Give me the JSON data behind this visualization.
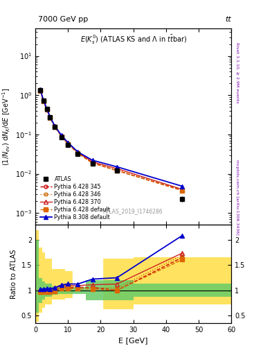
{
  "title_left": "7000 GeV pp",
  "title_right": "tt",
  "plot_title": "E(K$_s^0$) (ATLAS KS and \\Lambda in t\\={t}bar)",
  "watermark": "ATLAS_2019_I1746286",
  "right_label_top": "Rivet 3.1.10, ≥ 2.9M events",
  "right_label_bottom": "mcplots.cern.ch [arXiv:1306.3436]",
  "xlabel": "E [GeV]",
  "ylabel": "(1/N$_{ev}$) dN$_K$/dE [GeV$^{-1}$]",
  "ylabel_ratio": "Ratio to ATLAS",
  "xlim": [
    0,
    60
  ],
  "ylim_main": [
    0.0005,
    50
  ],
  "ylim_ratio": [
    0.35,
    2.3
  ],
  "atlas_x": [
    1.5,
    2.5,
    3.5,
    4.5,
    6.0,
    8.0,
    10.0,
    13.0,
    17.5,
    25.0,
    45.0
  ],
  "atlas_y": [
    1.35,
    0.72,
    0.44,
    0.27,
    0.155,
    0.085,
    0.055,
    0.032,
    0.018,
    0.012,
    0.0023
  ],
  "atlas_yerr_low": [
    0.05,
    0.03,
    0.02,
    0.012,
    0.007,
    0.004,
    0.003,
    0.0015,
    0.001,
    0.0008,
    0.0004
  ],
  "atlas_yerr_high": [
    0.05,
    0.03,
    0.02,
    0.012,
    0.007,
    0.004,
    0.003,
    0.0015,
    0.001,
    0.0008,
    0.0004
  ],
  "p6_345_x": [
    1.5,
    2.5,
    3.5,
    4.5,
    6.0,
    8.0,
    10.0,
    13.0,
    17.5,
    25.0,
    45.0
  ],
  "p6_345_y": [
    1.32,
    0.7,
    0.43,
    0.265,
    0.155,
    0.09,
    0.058,
    0.034,
    0.019,
    0.012,
    0.0038
  ],
  "p6_346_x": [
    1.5,
    2.5,
    3.5,
    4.5,
    6.0,
    8.0,
    10.0,
    13.0,
    17.5,
    25.0,
    45.0
  ],
  "p6_346_y": [
    1.33,
    0.71,
    0.435,
    0.268,
    0.157,
    0.091,
    0.059,
    0.034,
    0.019,
    0.0125,
    0.0039
  ],
  "p6_370_x": [
    1.5,
    2.5,
    3.5,
    4.5,
    6.0,
    8.0,
    10.0,
    13.0,
    17.5,
    25.0,
    45.0
  ],
  "p6_370_y": [
    1.35,
    0.73,
    0.45,
    0.275,
    0.162,
    0.093,
    0.06,
    0.035,
    0.02,
    0.0135,
    0.004
  ],
  "p6_def_x": [
    1.5,
    2.5,
    3.5,
    4.5,
    6.0,
    8.0,
    10.0,
    13.0,
    17.5,
    25.0,
    45.0
  ],
  "p6_def_y": [
    1.3,
    0.695,
    0.428,
    0.262,
    0.153,
    0.088,
    0.057,
    0.033,
    0.0185,
    0.012,
    0.0037
  ],
  "p8_def_x": [
    1.5,
    2.5,
    3.5,
    4.5,
    6.0,
    8.0,
    10.0,
    13.0,
    17.5,
    25.0,
    45.0
  ],
  "p8_def_y": [
    1.38,
    0.74,
    0.455,
    0.278,
    0.163,
    0.094,
    0.062,
    0.036,
    0.022,
    0.015,
    0.0048
  ],
  "ratio_p6_345": [
    0.978,
    0.972,
    0.977,
    0.981,
    1.0,
    1.06,
    1.05,
    1.06,
    1.056,
    1.0,
    1.652
  ],
  "ratio_p6_346": [
    0.985,
    0.986,
    0.989,
    0.993,
    1.013,
    1.071,
    1.073,
    1.063,
    1.056,
    1.042,
    1.696
  ],
  "ratio_p6_370": [
    1.0,
    1.014,
    1.023,
    1.019,
    1.045,
    1.094,
    1.091,
    1.094,
    1.111,
    1.125,
    1.739
  ],
  "ratio_p6_def": [
    0.963,
    0.965,
    0.973,
    0.97,
    0.987,
    1.035,
    1.036,
    1.031,
    1.028,
    1.0,
    1.609
  ],
  "ratio_p8_def": [
    1.022,
    1.028,
    1.034,
    1.03,
    1.052,
    1.106,
    1.127,
    1.125,
    1.222,
    1.25,
    2.087
  ],
  "band_edges": [
    0.0,
    1.0,
    2.0,
    3.0,
    5.0,
    7.0,
    9.0,
    11.5,
    15.5,
    20.5,
    30.0,
    60.0
  ],
  "green_lo": [
    0.55,
    0.75,
    0.82,
    0.87,
    0.92,
    0.93,
    0.93,
    0.93,
    0.8,
    0.8,
    0.87,
    0.87
  ],
  "green_hi": [
    2.0,
    1.25,
    1.18,
    1.13,
    1.08,
    1.07,
    1.07,
    1.07,
    1.2,
    1.2,
    1.13,
    1.13
  ],
  "yellow_lo": [
    0.38,
    0.55,
    0.65,
    0.72,
    0.82,
    0.82,
    0.85,
    0.85,
    0.62,
    0.62,
    0.72,
    0.72
  ],
  "yellow_hi": [
    2.2,
    1.85,
    1.75,
    1.63,
    1.42,
    1.42,
    1.38,
    1.38,
    1.63,
    1.63,
    1.65,
    1.65
  ],
  "white_gap_x1": 11.5,
  "white_gap_x2": 20.5,
  "color_p6_345": "#cc0000",
  "color_p6_346": "#cc6600",
  "color_p6_370": "#cc2222",
  "color_p6_def": "#dd6600",
  "color_p8_def": "#0000cc",
  "color_atlas": "#000000",
  "color_green": "#66cc66",
  "color_yellow": "#ffdd44"
}
